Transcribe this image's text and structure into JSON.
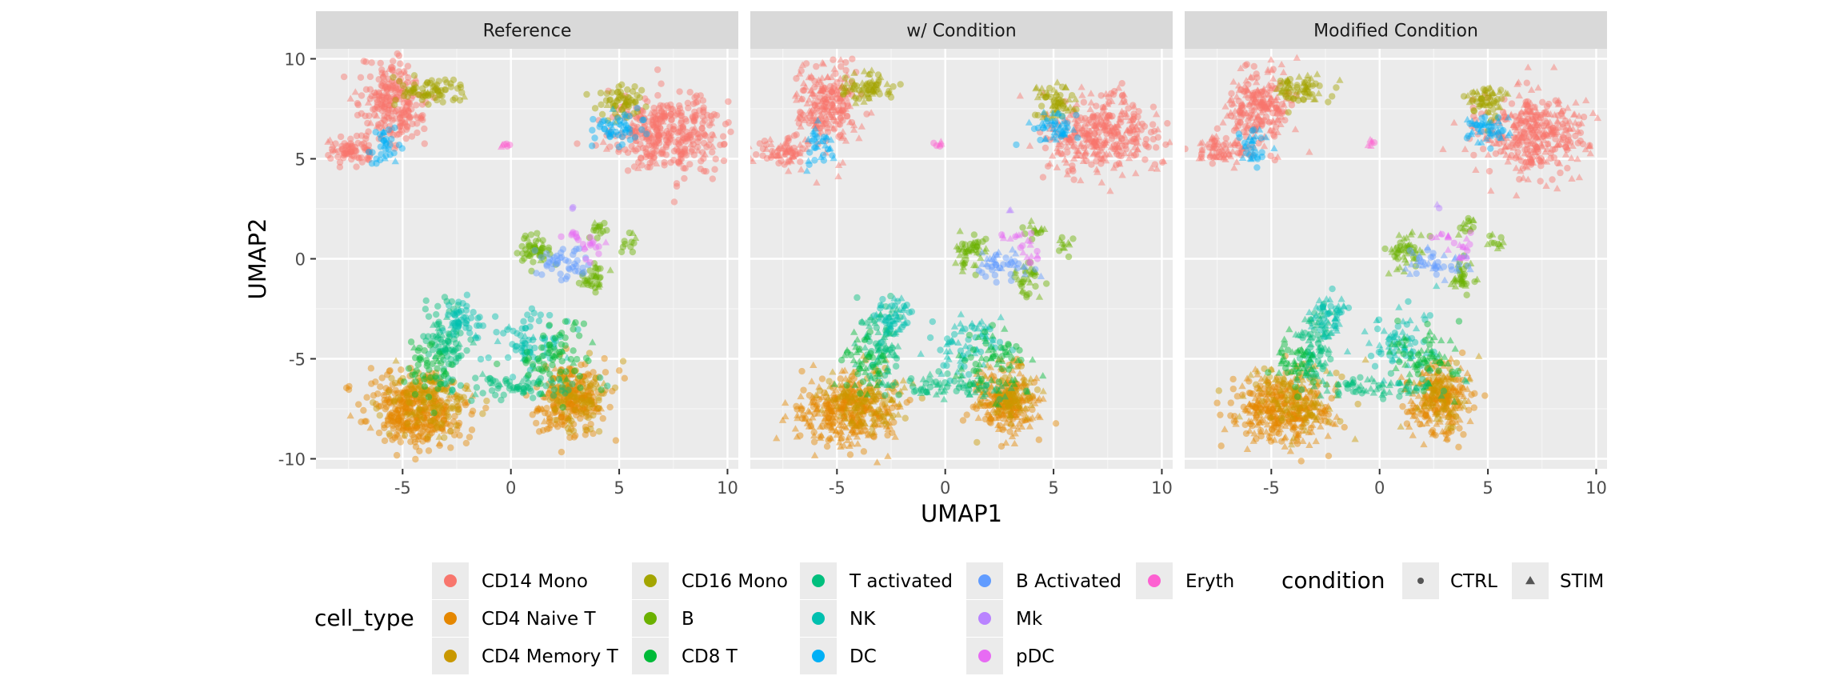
{
  "chart_data": {
    "type": "scatter",
    "facets": [
      "Reference",
      "w/ Condition",
      "Modified Condition"
    ],
    "xlabel": "UMAP1",
    "ylabel": "UMAP2",
    "xlim": [
      -9,
      10.5
    ],
    "ylim": [
      -10.5,
      10.5
    ],
    "x_ticks": [
      -5,
      0,
      5,
      10
    ],
    "y_ticks": [
      10,
      5,
      0,
      -5,
      -10
    ],
    "x_tick_labels": [
      "-5",
      "0",
      "5",
      "10"
    ],
    "y_tick_labels": [
      "10",
      "5",
      "0",
      "-5",
      "-10"
    ],
    "grid": true,
    "legend_placement": "bottom",
    "color_legend": {
      "title": "cell_type",
      "entries": [
        {
          "label": "CD14 Mono",
          "color": "#F8766D"
        },
        {
          "label": "CD4 Naive T",
          "color": "#E58700"
        },
        {
          "label": "CD4 Memory T",
          "color": "#C99800"
        },
        {
          "label": "CD16 Mono",
          "color": "#A3A500"
        },
        {
          "label": "B",
          "color": "#6BB100"
        },
        {
          "label": "CD8 T",
          "color": "#00BA38"
        },
        {
          "label": "T activated",
          "color": "#00BF7D"
        },
        {
          "label": "NK",
          "color": "#00C0AF"
        },
        {
          "label": "DC",
          "color": "#00B0F6"
        },
        {
          "label": "B Activated",
          "color": "#619CFF"
        },
        {
          "label": "Mk",
          "color": "#B983FF"
        },
        {
          "label": "pDC",
          "color": "#E76BF3"
        },
        {
          "label": "Eryth",
          "color": "#FD61D1"
        }
      ]
    },
    "shape_legend": {
      "title": "condition",
      "entries": [
        {
          "label": "CTRL",
          "shape": "circle"
        },
        {
          "label": "STIM",
          "shape": "triangle"
        }
      ]
    },
    "clusters": [
      {
        "type": "CD14 Mono",
        "cx": -5.5,
        "cy": 7.7,
        "sx": 0.7,
        "sy": 1.0,
        "n": 420
      },
      {
        "type": "CD14 Mono",
        "cx": -7.4,
        "cy": 5.4,
        "sx": 0.6,
        "sy": 0.35,
        "n": 130
      },
      {
        "type": "CD14 Mono",
        "cx": 7.2,
        "cy": 6.2,
        "sx": 1.3,
        "sy": 1.0,
        "n": 650
      },
      {
        "type": "CD16 Mono",
        "cx": -3.7,
        "cy": 8.5,
        "sx": 0.7,
        "sy": 0.35,
        "n": 130
      },
      {
        "type": "CD16 Mono",
        "cx": 5.0,
        "cy": 7.8,
        "sx": 0.5,
        "sy": 0.4,
        "n": 110
      },
      {
        "type": "DC",
        "cx": -5.8,
        "cy": 5.7,
        "sx": 0.3,
        "sy": 0.6,
        "n": 60
      },
      {
        "type": "DC",
        "cx": 5.0,
        "cy": 6.5,
        "sx": 0.6,
        "sy": 0.4,
        "n": 90
      },
      {
        "type": "Eryth",
        "cx": -0.3,
        "cy": 5.7,
        "sx": 0.1,
        "sy": 0.12,
        "n": 10
      },
      {
        "type": "B",
        "cx": 1.1,
        "cy": 0.4,
        "sx": 0.4,
        "sy": 0.45,
        "n": 90
      },
      {
        "type": "B",
        "cx": 3.8,
        "cy": -1.0,
        "sx": 0.3,
        "sy": 0.45,
        "n": 60
      },
      {
        "type": "B",
        "cx": 4.0,
        "cy": 1.5,
        "sx": 0.25,
        "sy": 0.3,
        "n": 25
      },
      {
        "type": "B",
        "cx": 5.5,
        "cy": 0.8,
        "sx": 0.25,
        "sy": 0.3,
        "n": 20
      },
      {
        "type": "B Activated",
        "cx": 2.6,
        "cy": -0.2,
        "sx": 0.7,
        "sy": 0.4,
        "n": 80
      },
      {
        "type": "pDC",
        "cx": 3.8,
        "cy": 0.5,
        "sx": 0.25,
        "sy": 0.4,
        "n": 25
      },
      {
        "type": "pDC",
        "cx": 2.9,
        "cy": 1.1,
        "sx": 0.35,
        "sy": 0.12,
        "n": 15
      },
      {
        "type": "Mk",
        "cx": 2.8,
        "cy": 2.6,
        "sx": 0.1,
        "sy": 0.1,
        "n": 4
      },
      {
        "type": "CD4 Naive T",
        "cx": -4.5,
        "cy": -7.6,
        "sx": 1.1,
        "sy": 0.9,
        "n": 650
      },
      {
        "type": "CD4 Naive T",
        "cx": 2.8,
        "cy": -7.1,
        "sx": 0.8,
        "sy": 0.8,
        "n": 430
      },
      {
        "type": "CD4 Memory T",
        "cx": -3.7,
        "cy": -7.0,
        "sx": 1.0,
        "sy": 0.9,
        "n": 220
      },
      {
        "type": "CD4 Memory T",
        "cx": 3.0,
        "cy": -6.8,
        "sx": 0.7,
        "sy": 0.7,
        "n": 150
      },
      {
        "type": "T activated",
        "cx": -3.0,
        "cy": -4.2,
        "sx": 0.5,
        "sy": 1.0,
        "n": 160
      },
      {
        "type": "T activated",
        "cx": 0.1,
        "cy": -6.4,
        "sx": 1.5,
        "sy": 0.3,
        "n": 130
      },
      {
        "type": "NK",
        "cx": -2.3,
        "cy": -3.0,
        "sx": 0.45,
        "sy": 0.6,
        "n": 90
      },
      {
        "type": "NK",
        "cx": 1.0,
        "cy": -4.2,
        "sx": 0.9,
        "sy": 0.8,
        "n": 130
      },
      {
        "type": "CD8 T",
        "cx": 2.0,
        "cy": -5.0,
        "sx": 0.9,
        "sy": 0.9,
        "n": 120
      },
      {
        "type": "CD8 T",
        "cx": -3.8,
        "cy": -5.3,
        "sx": 0.6,
        "sy": 0.7,
        "n": 80
      }
    ]
  }
}
